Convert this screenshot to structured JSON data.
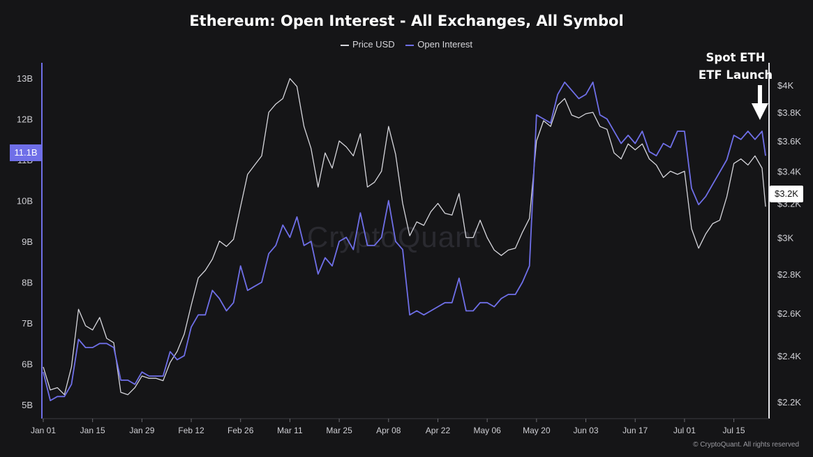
{
  "chart_data": {
    "type": "line",
    "title": "Ethereum: Open Interest - All Exchanges, All Symbol",
    "legend": [
      "Price USD",
      "Open Interest"
    ],
    "legend_position": "top-center",
    "x_ticks": [
      "Jan 01",
      "Jan 15",
      "Jan 29",
      "Feb 12",
      "Feb 26",
      "Mar 11",
      "Mar 25",
      "Apr 08",
      "Apr 22",
      "May 06",
      "May 20",
      "Jun 03",
      "Jun 17",
      "Jul 01",
      "Jul 15"
    ],
    "x_range": [
      "2024-01-01",
      "2024-07-24"
    ],
    "left_axis": {
      "ticks": [
        "5B",
        "6B",
        "7B",
        "8B",
        "9B",
        "10B",
        "11B",
        "12B",
        "13B"
      ],
      "range": [
        4.8,
        13.3
      ],
      "current_label": "11.1B"
    },
    "right_axis": {
      "ticks": [
        "$2.2K",
        "$2.4K",
        "$2.6K",
        "$2.8K",
        "$3K",
        "$3.2K",
        "$3.4K",
        "$3.6K",
        "$3.8K",
        "$4K"
      ],
      "range": [
        2150,
        4150
      ],
      "scale": "log",
      "current_label": "$3.2K"
    },
    "grid": false,
    "annotation": {
      "line1": "Spot ETH",
      "line2": "ETF Launch",
      "date": "2024-07-23"
    },
    "watermark": "CryptoQuant",
    "copyright": "© CryptoQuant. All rights reserved",
    "colors": {
      "price": "#d6d6dc",
      "open_interest": "#6f6fe8",
      "background": "#151517"
    },
    "series": [
      {
        "name": "Price USD",
        "axis": "right",
        "points": [
          [
            "2024-01-01",
            2350
          ],
          [
            "2024-01-03",
            2250
          ],
          [
            "2024-01-05",
            2260
          ],
          [
            "2024-01-07",
            2230
          ],
          [
            "2024-01-09",
            2350
          ],
          [
            "2024-01-11",
            2620
          ],
          [
            "2024-01-13",
            2540
          ],
          [
            "2024-01-15",
            2520
          ],
          [
            "2024-01-17",
            2580
          ],
          [
            "2024-01-19",
            2480
          ],
          [
            "2024-01-21",
            2460
          ],
          [
            "2024-01-23",
            2240
          ],
          [
            "2024-01-25",
            2230
          ],
          [
            "2024-01-27",
            2260
          ],
          [
            "2024-01-29",
            2310
          ],
          [
            "2024-01-31",
            2300
          ],
          [
            "2024-02-02",
            2300
          ],
          [
            "2024-02-04",
            2290
          ],
          [
            "2024-02-06",
            2370
          ],
          [
            "2024-02-08",
            2420
          ],
          [
            "2024-02-10",
            2500
          ],
          [
            "2024-02-12",
            2640
          ],
          [
            "2024-02-14",
            2780
          ],
          [
            "2024-02-16",
            2820
          ],
          [
            "2024-02-18",
            2880
          ],
          [
            "2024-02-20",
            2980
          ],
          [
            "2024-02-22",
            2950
          ],
          [
            "2024-02-24",
            2990
          ],
          [
            "2024-02-26",
            3180
          ],
          [
            "2024-02-28",
            3380
          ],
          [
            "2024-03-01",
            3440
          ],
          [
            "2024-03-03",
            3500
          ],
          [
            "2024-03-05",
            3800
          ],
          [
            "2024-03-07",
            3860
          ],
          [
            "2024-03-09",
            3900
          ],
          [
            "2024-03-11",
            4050
          ],
          [
            "2024-03-13",
            3990
          ],
          [
            "2024-03-15",
            3700
          ],
          [
            "2024-03-17",
            3550
          ],
          [
            "2024-03-19",
            3300
          ],
          [
            "2024-03-21",
            3520
          ],
          [
            "2024-03-23",
            3420
          ],
          [
            "2024-03-25",
            3600
          ],
          [
            "2024-03-27",
            3560
          ],
          [
            "2024-03-29",
            3500
          ],
          [
            "2024-03-31",
            3650
          ],
          [
            "2024-04-02",
            3300
          ],
          [
            "2024-04-04",
            3330
          ],
          [
            "2024-04-06",
            3400
          ],
          [
            "2024-04-08",
            3700
          ],
          [
            "2024-04-10",
            3510
          ],
          [
            "2024-04-12",
            3200
          ],
          [
            "2024-04-14",
            3010
          ],
          [
            "2024-04-16",
            3090
          ],
          [
            "2024-04-18",
            3070
          ],
          [
            "2024-04-20",
            3150
          ],
          [
            "2024-04-22",
            3200
          ],
          [
            "2024-04-24",
            3140
          ],
          [
            "2024-04-26",
            3130
          ],
          [
            "2024-04-28",
            3260
          ],
          [
            "2024-04-30",
            3000
          ],
          [
            "2024-05-02",
            3000
          ],
          [
            "2024-05-04",
            3100
          ],
          [
            "2024-05-06",
            3000
          ],
          [
            "2024-05-08",
            2930
          ],
          [
            "2024-05-10",
            2900
          ],
          [
            "2024-05-12",
            2930
          ],
          [
            "2024-05-14",
            2940
          ],
          [
            "2024-05-16",
            3030
          ],
          [
            "2024-05-18",
            3110
          ],
          [
            "2024-05-20",
            3600
          ],
          [
            "2024-05-22",
            3740
          ],
          [
            "2024-05-24",
            3700
          ],
          [
            "2024-05-26",
            3850
          ],
          [
            "2024-05-28",
            3900
          ],
          [
            "2024-05-30",
            3780
          ],
          [
            "2024-06-01",
            3760
          ],
          [
            "2024-06-03",
            3790
          ],
          [
            "2024-06-05",
            3800
          ],
          [
            "2024-06-07",
            3700
          ],
          [
            "2024-06-09",
            3680
          ],
          [
            "2024-06-11",
            3520
          ],
          [
            "2024-06-13",
            3480
          ],
          [
            "2024-06-15",
            3580
          ],
          [
            "2024-06-17",
            3540
          ],
          [
            "2024-06-19",
            3580
          ],
          [
            "2024-06-21",
            3480
          ],
          [
            "2024-06-23",
            3440
          ],
          [
            "2024-06-25",
            3360
          ],
          [
            "2024-06-27",
            3400
          ],
          [
            "2024-06-29",
            3380
          ],
          [
            "2024-07-01",
            3400
          ],
          [
            "2024-07-03",
            3050
          ],
          [
            "2024-07-05",
            2940
          ],
          [
            "2024-07-07",
            3020
          ],
          [
            "2024-07-09",
            3080
          ],
          [
            "2024-07-11",
            3100
          ],
          [
            "2024-07-13",
            3240
          ],
          [
            "2024-07-15",
            3450
          ],
          [
            "2024-07-17",
            3480
          ],
          [
            "2024-07-19",
            3440
          ],
          [
            "2024-07-21",
            3500
          ],
          [
            "2024-07-23",
            3420
          ],
          [
            "2024-07-24",
            3180
          ]
        ]
      },
      {
        "name": "Open Interest",
        "axis": "left",
        "points": [
          [
            "2024-01-01",
            5.8
          ],
          [
            "2024-01-03",
            5.1
          ],
          [
            "2024-01-05",
            5.2
          ],
          [
            "2024-01-07",
            5.2
          ],
          [
            "2024-01-09",
            5.5
          ],
          [
            "2024-01-11",
            6.6
          ],
          [
            "2024-01-13",
            6.4
          ],
          [
            "2024-01-15",
            6.4
          ],
          [
            "2024-01-17",
            6.5
          ],
          [
            "2024-01-19",
            6.5
          ],
          [
            "2024-01-21",
            6.4
          ],
          [
            "2024-01-23",
            5.6
          ],
          [
            "2024-01-25",
            5.6
          ],
          [
            "2024-01-27",
            5.5
          ],
          [
            "2024-01-29",
            5.8
          ],
          [
            "2024-01-31",
            5.7
          ],
          [
            "2024-02-02",
            5.7
          ],
          [
            "2024-02-04",
            5.7
          ],
          [
            "2024-02-06",
            6.3
          ],
          [
            "2024-02-08",
            6.1
          ],
          [
            "2024-02-10",
            6.2
          ],
          [
            "2024-02-12",
            6.9
          ],
          [
            "2024-02-14",
            7.2
          ],
          [
            "2024-02-16",
            7.2
          ],
          [
            "2024-02-18",
            7.8
          ],
          [
            "2024-02-20",
            7.6
          ],
          [
            "2024-02-22",
            7.3
          ],
          [
            "2024-02-24",
            7.5
          ],
          [
            "2024-02-26",
            8.4
          ],
          [
            "2024-02-28",
            7.8
          ],
          [
            "2024-03-01",
            7.9
          ],
          [
            "2024-03-03",
            8.0
          ],
          [
            "2024-03-05",
            8.7
          ],
          [
            "2024-03-07",
            8.9
          ],
          [
            "2024-03-09",
            9.4
          ],
          [
            "2024-03-11",
            9.1
          ],
          [
            "2024-03-13",
            9.6
          ],
          [
            "2024-03-15",
            8.9
          ],
          [
            "2024-03-17",
            9.0
          ],
          [
            "2024-03-19",
            8.2
          ],
          [
            "2024-03-21",
            8.6
          ],
          [
            "2024-03-23",
            8.4
          ],
          [
            "2024-03-25",
            9.0
          ],
          [
            "2024-03-27",
            9.1
          ],
          [
            "2024-03-29",
            8.8
          ],
          [
            "2024-03-31",
            9.7
          ],
          [
            "2024-04-02",
            8.9
          ],
          [
            "2024-04-04",
            8.9
          ],
          [
            "2024-04-06",
            9.1
          ],
          [
            "2024-04-08",
            10.0
          ],
          [
            "2024-04-10",
            9.0
          ],
          [
            "2024-04-12",
            8.8
          ],
          [
            "2024-04-14",
            7.2
          ],
          [
            "2024-04-16",
            7.3
          ],
          [
            "2024-04-18",
            7.2
          ],
          [
            "2024-04-20",
            7.3
          ],
          [
            "2024-04-22",
            7.4
          ],
          [
            "2024-04-24",
            7.5
          ],
          [
            "2024-04-26",
            7.5
          ],
          [
            "2024-04-28",
            8.1
          ],
          [
            "2024-04-30",
            7.3
          ],
          [
            "2024-05-02",
            7.3
          ],
          [
            "2024-05-04",
            7.5
          ],
          [
            "2024-05-06",
            7.5
          ],
          [
            "2024-05-08",
            7.4
          ],
          [
            "2024-05-10",
            7.6
          ],
          [
            "2024-05-12",
            7.7
          ],
          [
            "2024-05-14",
            7.7
          ],
          [
            "2024-05-16",
            8.0
          ],
          [
            "2024-05-18",
            8.4
          ],
          [
            "2024-05-20",
            12.1
          ],
          [
            "2024-05-22",
            12.0
          ],
          [
            "2024-05-24",
            11.9
          ],
          [
            "2024-05-26",
            12.6
          ],
          [
            "2024-05-28",
            12.9
          ],
          [
            "2024-05-30",
            12.7
          ],
          [
            "2024-06-01",
            12.5
          ],
          [
            "2024-06-03",
            12.6
          ],
          [
            "2024-06-05",
            12.9
          ],
          [
            "2024-06-07",
            12.1
          ],
          [
            "2024-06-09",
            12.0
          ],
          [
            "2024-06-11",
            11.7
          ],
          [
            "2024-06-13",
            11.4
          ],
          [
            "2024-06-15",
            11.6
          ],
          [
            "2024-06-17",
            11.4
          ],
          [
            "2024-06-19",
            11.7
          ],
          [
            "2024-06-21",
            11.2
          ],
          [
            "2024-06-23",
            11.1
          ],
          [
            "2024-06-25",
            11.4
          ],
          [
            "2024-06-27",
            11.3
          ],
          [
            "2024-06-29",
            11.7
          ],
          [
            "2024-07-01",
            11.7
          ],
          [
            "2024-07-03",
            10.3
          ],
          [
            "2024-07-05",
            9.9
          ],
          [
            "2024-07-07",
            10.1
          ],
          [
            "2024-07-09",
            10.4
          ],
          [
            "2024-07-11",
            10.7
          ],
          [
            "2024-07-13",
            11.0
          ],
          [
            "2024-07-15",
            11.6
          ],
          [
            "2024-07-17",
            11.5
          ],
          [
            "2024-07-19",
            11.7
          ],
          [
            "2024-07-21",
            11.5
          ],
          [
            "2024-07-23",
            11.7
          ],
          [
            "2024-07-24",
            11.1
          ]
        ]
      }
    ]
  }
}
